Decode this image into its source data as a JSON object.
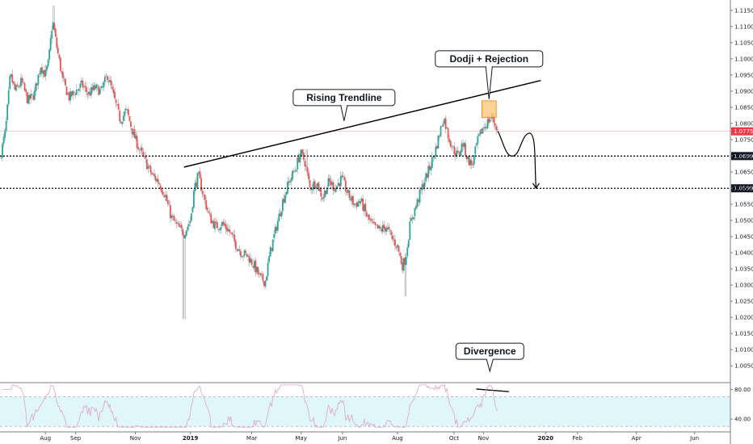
{
  "chart_data": {
    "type": "candlestick",
    "yaxis": {
      "ticks": [
        1.115,
        1.11,
        1.105,
        1.1,
        1.095,
        1.09,
        1.085,
        1.08,
        1.075,
        1.07,
        1.065,
        1.06,
        1.055,
        1.05,
        1.045,
        1.04,
        1.035,
        1.03,
        1.025,
        1.02,
        1.015,
        1.01,
        1.005
      ],
      "tick_labels": [
        "1.11500",
        "1.11000",
        "1.10500",
        "1.10000",
        "1.09500",
        "1.09000",
        "1.08500",
        "1.08000",
        "1.07500",
        "1.07000",
        "1.06500",
        "1.06000",
        "1.05500",
        "1.05000",
        "1.04500",
        "1.04000",
        "1.03500",
        "1.03000",
        "1.02500",
        "1.02000",
        "1.01500",
        "1.01000",
        "1.00500"
      ],
      "range": [
        1.0008,
        1.1172
      ]
    },
    "xaxis": {
      "labels": [
        "Aug",
        "Sep",
        "Nov",
        "2019",
        "Mar",
        "May",
        "Jun",
        "Aug",
        "Oct",
        "Nov",
        "2020",
        "Feb",
        "Apr",
        "Jun"
      ],
      "label_days": [
        0,
        38,
        113,
        182,
        259,
        321,
        373,
        442,
        513,
        550,
        628,
        668,
        742,
        815
      ],
      "range_days": [
        -57,
        860
      ]
    },
    "price_anchors": [
      [
        -57,
        1.069
      ],
      [
        -50,
        1.078
      ],
      [
        -44,
        1.095
      ],
      [
        -38,
        1.09
      ],
      [
        -30,
        1.093
      ],
      [
        -22,
        1.087
      ],
      [
        -14,
        1.089
      ],
      [
        -6,
        1.098
      ],
      [
        0,
        1.095
      ],
      [
        4,
        1.099
      ],
      [
        9,
        1.112
      ],
      [
        14,
        1.104
      ],
      [
        22,
        1.093
      ],
      [
        30,
        1.088
      ],
      [
        38,
        1.09
      ],
      [
        46,
        1.092
      ],
      [
        54,
        1.089
      ],
      [
        62,
        1.091
      ],
      [
        70,
        1.09
      ],
      [
        78,
        1.095
      ],
      [
        86,
        1.088
      ],
      [
        94,
        1.081
      ],
      [
        102,
        1.084
      ],
      [
        110,
        1.077
      ],
      [
        118,
        1.072
      ],
      [
        126,
        1.068
      ],
      [
        134,
        1.064
      ],
      [
        142,
        1.062
      ],
      [
        150,
        1.058
      ],
      [
        158,
        1.051
      ],
      [
        166,
        1.048
      ],
      [
        174,
        1.046
      ],
      [
        182,
        1.05
      ],
      [
        187,
        1.06
      ],
      [
        192,
        1.064
      ],
      [
        198,
        1.058
      ],
      [
        206,
        1.051
      ],
      [
        214,
        1.048
      ],
      [
        222,
        1.049
      ],
      [
        230,
        1.047
      ],
      [
        238,
        1.043
      ],
      [
        246,
        1.04
      ],
      [
        254,
        1.039
      ],
      [
        262,
        1.036
      ],
      [
        270,
        1.032
      ],
      [
        276,
        1.031
      ],
      [
        282,
        1.04
      ],
      [
        290,
        1.048
      ],
      [
        298,
        1.056
      ],
      [
        306,
        1.062
      ],
      [
        314,
        1.066
      ],
      [
        320,
        1.071
      ],
      [
        326,
        1.068
      ],
      [
        332,
        1.06
      ],
      [
        340,
        1.062
      ],
      [
        348,
        1.057
      ],
      [
        356,
        1.062
      ],
      [
        364,
        1.06
      ],
      [
        372,
        1.063
      ],
      [
        380,
        1.058
      ],
      [
        388,
        1.055
      ],
      [
        396,
        1.056
      ],
      [
        404,
        1.051
      ],
      [
        412,
        1.048
      ],
      [
        420,
        1.047
      ],
      [
        428,
        1.048
      ],
      [
        436,
        1.044
      ],
      [
        442,
        1.042
      ],
      [
        448,
        1.036
      ],
      [
        452,
        1.038
      ],
      [
        458,
        1.049
      ],
      [
        466,
        1.055
      ],
      [
        474,
        1.061
      ],
      [
        482,
        1.066
      ],
      [
        490,
        1.072
      ],
      [
        496,
        1.078
      ],
      [
        500,
        1.082
      ],
      [
        506,
        1.076
      ],
      [
        512,
        1.072
      ],
      [
        518,
        1.07
      ],
      [
        524,
        1.074
      ],
      [
        530,
        1.069
      ],
      [
        536,
        1.067
      ],
      [
        542,
        1.074
      ],
      [
        548,
        1.078
      ],
      [
        554,
        1.08
      ],
      [
        560,
        1.082
      ],
      [
        566,
        1.079
      ],
      [
        568,
        1.0776
      ]
    ],
    "rsi_ticks": [
      80,
      40
    ],
    "rsi_tick_labels": [
      "80.00",
      "40.00"
    ],
    "rsi_band": [
      70,
      30
    ],
    "rsi_range": [
      28,
      87
    ],
    "horizontal_levels": [
      1.06991,
      1.05994
    ],
    "last_price": 1.07757,
    "level_labels": [
      "1.06991",
      "1.05994"
    ],
    "last_price_label": "1.07757",
    "trendline": {
      "start": [
        174,
        1.0665
      ],
      "end": [
        622,
        1.0933
      ]
    },
    "rejection_box": {
      "x": [
        548,
        566
      ],
      "y": [
        1.0818,
        1.087
      ]
    },
    "projection": {
      "from": [
        568,
        1.0776
      ],
      "via": [
        588,
        1.07
      ],
      "to": [
        616,
        1.06
      ]
    },
    "rsi_divergence_line": {
      "start": [
        541,
        80.5
      ],
      "end": [
        582,
        77
      ]
    },
    "annotations": [
      {
        "text": "Rising Trendline",
        "anchor": [
          375,
          1.0808
        ],
        "box_center": [
          375,
          1.088
        ]
      },
      {
        "text": "Dodji + Rejection",
        "anchor": [
          557,
          1.0875
        ],
        "box_center": [
          557,
          1.1
        ]
      },
      {
        "text": "Divergence",
        "anchor": [
          558,
          1.0033
        ],
        "box_center": [
          558,
          1.0095
        ]
      }
    ]
  },
  "colors": {
    "bull": "#26a69a",
    "bear": "#ef5350",
    "wick": "#a0a4ab",
    "rsi_line": "#e1a0c8",
    "rsi_band_fill": "#e0f7fa",
    "axis": "#787b86",
    "level_line": "#000000",
    "last_price_badge": "#f23645",
    "level_badge": "#131722",
    "rejection_box": "#ffb74d"
  }
}
